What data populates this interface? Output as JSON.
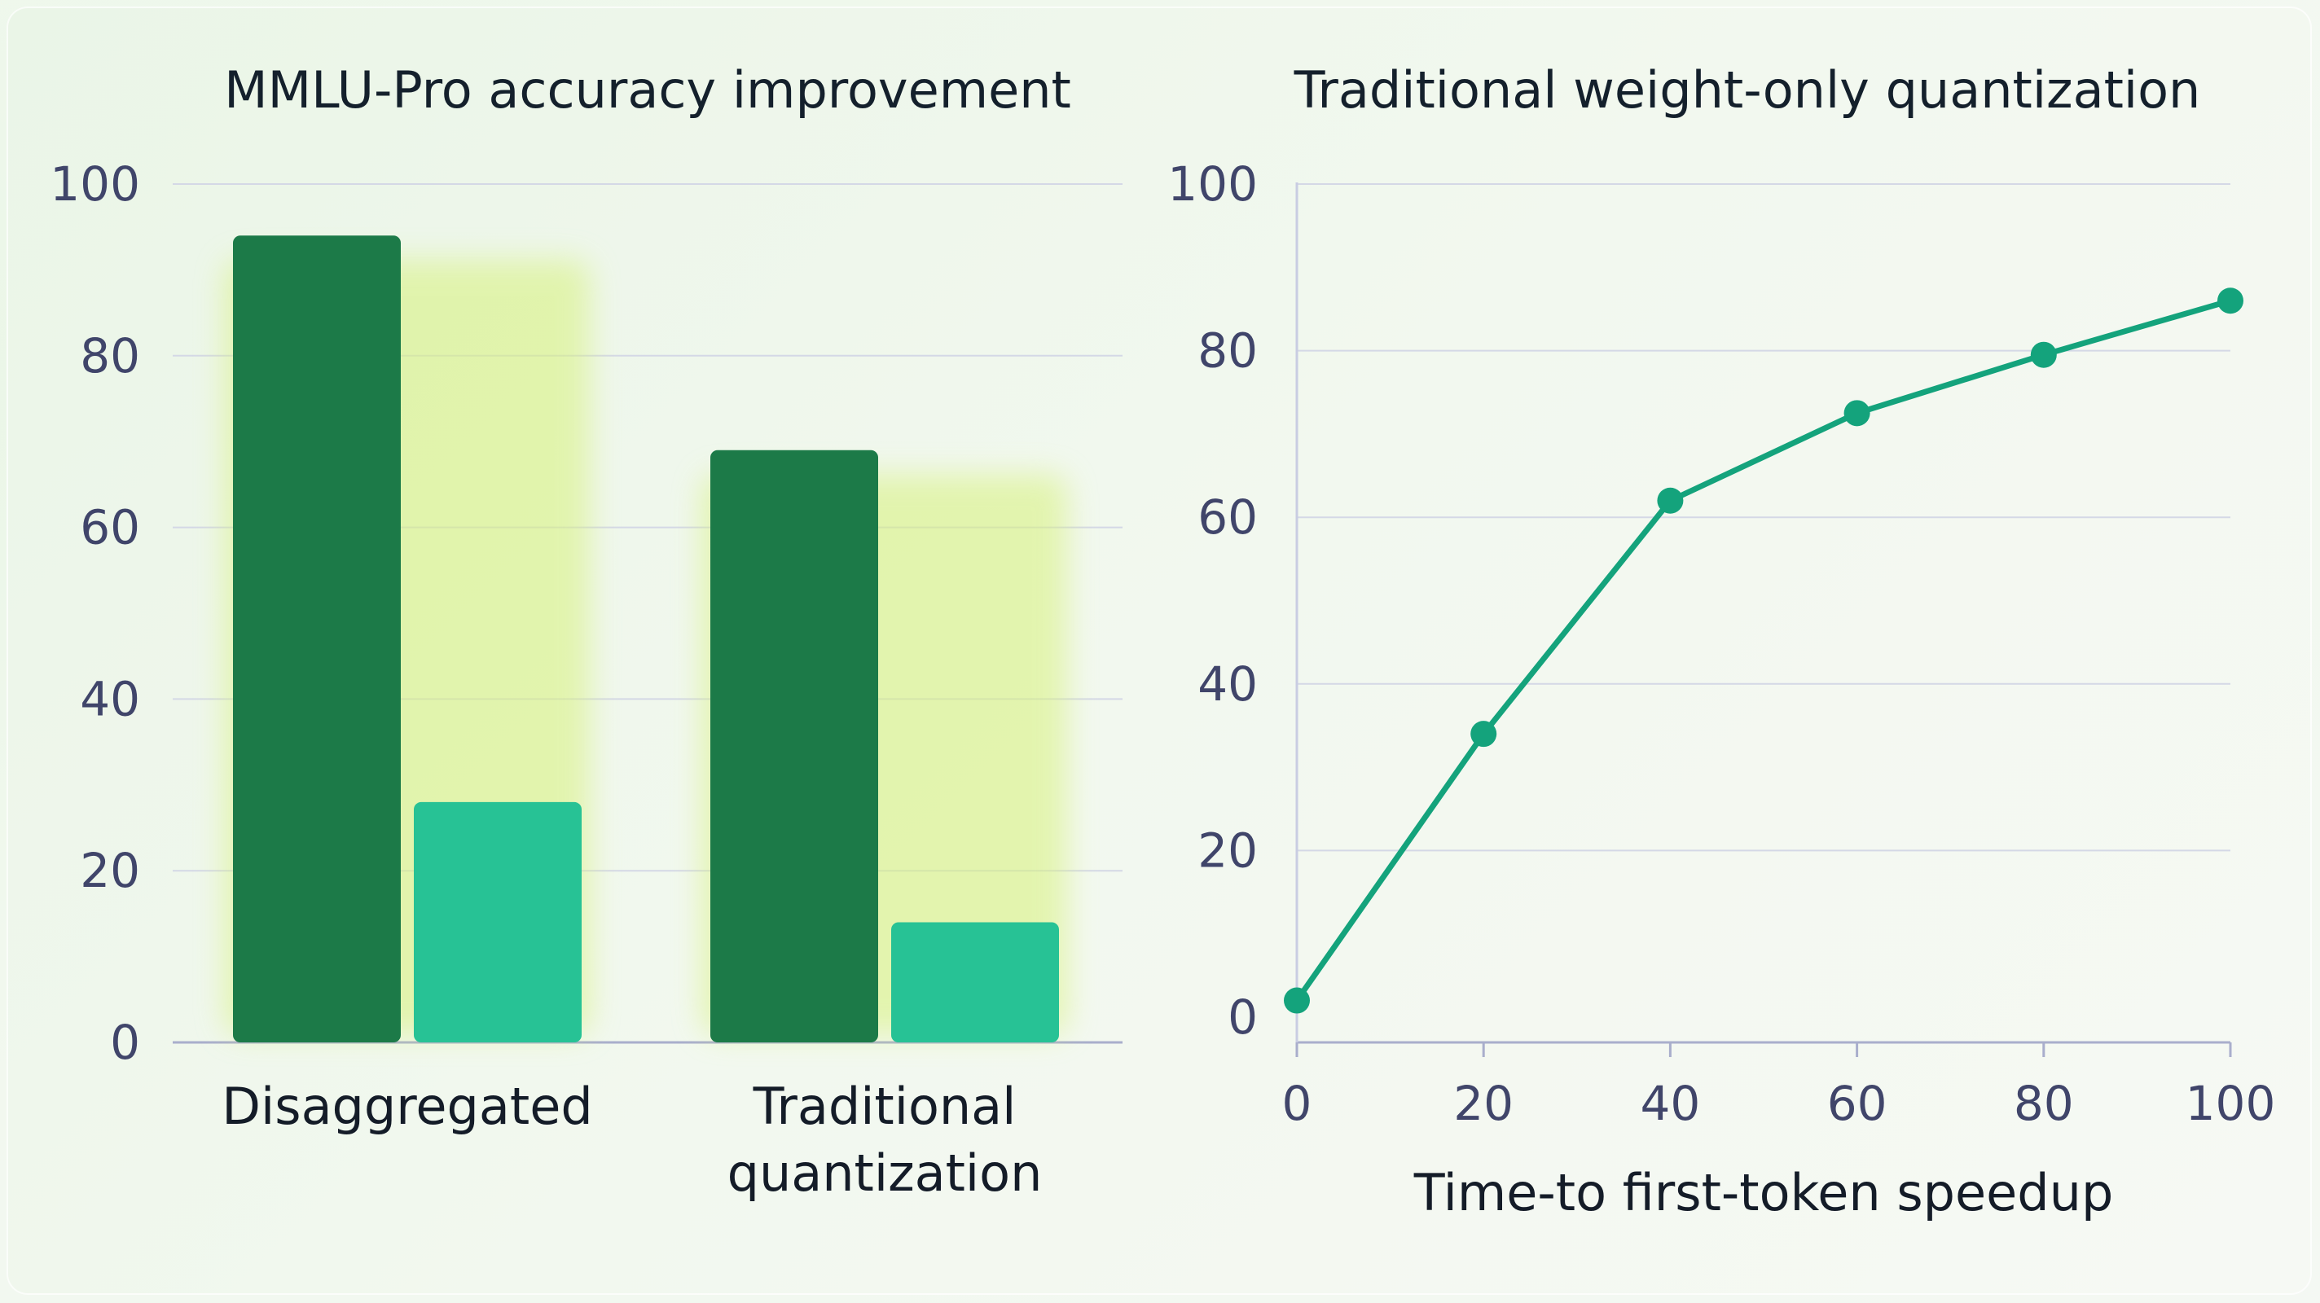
{
  "chart_data": [
    {
      "type": "bar",
      "title": "MMLU-Pro accuracy improvement",
      "categories": [
        [
          "Disaggregated"
        ],
        [
          "Traditional",
          "quantization"
        ]
      ],
      "series": [
        {
          "values": [
            94,
            69
          ],
          "color": "#1c7a48"
        },
        {
          "values": [
            28,
            14
          ],
          "color": "#27c295"
        }
      ],
      "ylim": [
        0,
        100
      ],
      "yticks": [
        "0",
        "20",
        "40",
        "60",
        "80",
        "100"
      ],
      "grid": true
    },
    {
      "type": "line",
      "title": "Traditional weight-only quantization",
      "xlabel": "Time-to first-token speedup",
      "ylabel": "",
      "x": [
        0,
        20,
        40,
        60,
        80,
        100
      ],
      "y": [
        2,
        34,
        62,
        72.5,
        79.5,
        86
      ],
      "xlim": [
        0,
        100
      ],
      "ylim": [
        0,
        100
      ],
      "xticks": [
        "0",
        "20",
        "40",
        "60",
        "80",
        "100"
      ],
      "yticks": [
        "0",
        "20",
        "40",
        "60",
        "80",
        "100"
      ],
      "color": "#14a37c",
      "grid": true
    }
  ]
}
